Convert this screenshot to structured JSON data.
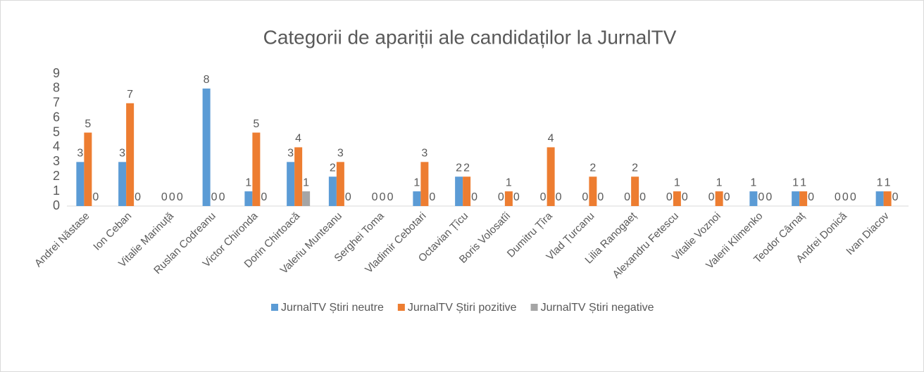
{
  "chart_data": {
    "type": "bar",
    "title": "Categorii de apariții ale candidaților la JurnalTV",
    "categories": [
      "Andrei Năstase",
      "Ion Ceban",
      "Vitalie Marinuță",
      "Ruslan Codreanu",
      "Victor Chironda",
      "Dorin Chirtoacă",
      "Valeriu Munteanu",
      "Serghei Toma",
      "Vladimir Cebotari",
      "Octavian Țîcu",
      "Boris Volosatîi",
      "Dumitru Țîra",
      "Vlad Țurcanu",
      "Lilia Ranogaeț",
      "Alexandru Fetescu",
      "Vitalie Voznoi",
      "Valerii Klimenko",
      "Teodor Cârnaț",
      "Andrei Donică",
      "Ivan Diacov"
    ],
    "series": [
      {
        "name": "JurnalTV Știri neutre",
        "color": "#5b9bd5",
        "values": [
          3,
          3,
          0,
          8,
          1,
          3,
          2,
          0,
          1,
          2,
          0,
          0,
          0,
          0,
          0,
          0,
          1,
          1,
          0,
          1
        ]
      },
      {
        "name": "JurnalTV Știri pozitive",
        "color": "#ed7d31",
        "values": [
          5,
          7,
          0,
          0,
          5,
          4,
          3,
          0,
          3,
          2,
          1,
          4,
          2,
          2,
          1,
          1,
          0,
          1,
          0,
          1
        ]
      },
      {
        "name": "JurnalTV Știri negative",
        "color": "#a5a5a5",
        "values": [
          0,
          0,
          0,
          0,
          0,
          1,
          0,
          0,
          0,
          0,
          0,
          0,
          0,
          0,
          0,
          0,
          0,
          0,
          0,
          0
        ]
      }
    ],
    "ylim": [
      0,
      9
    ],
    "yticks": [
      0,
      1,
      2,
      3,
      4,
      5,
      6,
      7,
      8,
      9
    ],
    "legend": "bottom"
  }
}
